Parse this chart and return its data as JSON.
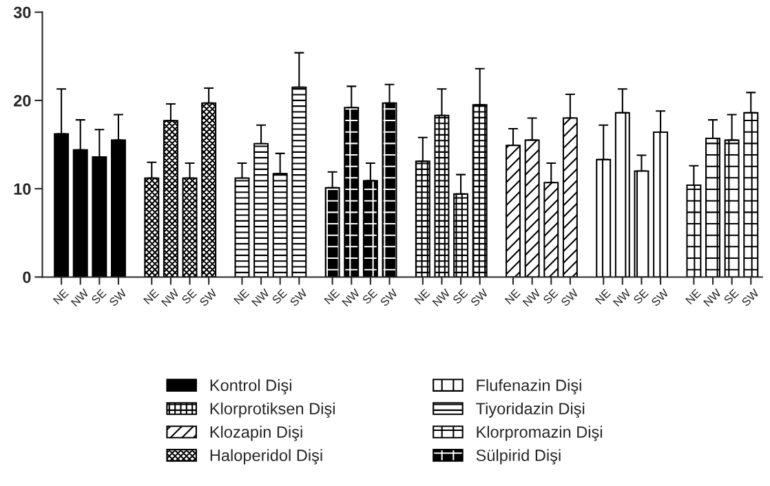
{
  "chart_data": {
    "type": "bar",
    "categories": [
      "NE",
      "NW",
      "SE",
      "SW",
      "NE",
      "NW",
      "SE",
      "SW",
      "NE",
      "NW",
      "SE",
      "SW",
      "NE",
      "NW",
      "SE",
      "SW",
      "NE",
      "NW",
      "SE",
      "SW",
      "NE",
      "NW",
      "SE",
      "SW",
      "NE",
      "NW",
      "SE",
      "SW",
      "NE",
      "NW",
      "SE",
      "SW"
    ],
    "series": [
      {
        "name": "Kontrol Dişi",
        "color": "#000000",
        "values": [
          16.2,
          14.4,
          13.6,
          15.5,
          null,
          null,
          null,
          null,
          null,
          null,
          null,
          null,
          null,
          null,
          null,
          null,
          null,
          null,
          null,
          null,
          null,
          null,
          null,
          null,
          null,
          null,
          null,
          null,
          null,
          null,
          null,
          null
        ],
        "errors": [
          [
            16.2,
            21.3
          ],
          [
            14.4,
            17.8
          ],
          [
            13.6,
            16.7
          ],
          [
            15.5,
            18.4
          ],
          null,
          null,
          null,
          null,
          null,
          null,
          null,
          null,
          null,
          null,
          null,
          null,
          null,
          null,
          null,
          null,
          null,
          null,
          null,
          null,
          null,
          null,
          null,
          null,
          null,
          null,
          null,
          null
        ]
      },
      {
        "name": "Klorprotiksen Dişi",
        "color": "#000000",
        "values": [
          null,
          null,
          null,
          null,
          null,
          null,
          null,
          null,
          null,
          null,
          null,
          null,
          null,
          null,
          null,
          null,
          13.1,
          18.3,
          9.4,
          19.5,
          null,
          null,
          null,
          null,
          null,
          null,
          null,
          null,
          null,
          null,
          null,
          null
        ],
        "errors": [
          null,
          null,
          null,
          null,
          null,
          null,
          null,
          null,
          null,
          null,
          null,
          null,
          null,
          null,
          null,
          null,
          [
            13.1,
            15.8
          ],
          [
            18.3,
            21.3
          ],
          [
            9.4,
            11.6
          ],
          [
            19.5,
            23.6
          ],
          null,
          null,
          null,
          null,
          null,
          null,
          null,
          null,
          null,
          null,
          null,
          null
        ]
      },
      {
        "name": "Klozapin Dişi",
        "color": "#000000",
        "values": [
          null,
          null,
          null,
          null,
          null,
          null,
          null,
          null,
          null,
          null,
          null,
          null,
          null,
          null,
          null,
          null,
          null,
          null,
          null,
          null,
          14.9,
          15.5,
          10.7,
          18.0,
          null,
          null,
          null,
          null,
          null,
          null,
          null,
          null
        ],
        "errors": [
          null,
          null,
          null,
          null,
          null,
          null,
          null,
          null,
          null,
          null,
          null,
          null,
          null,
          null,
          null,
          null,
          null,
          null,
          null,
          null,
          [
            14.9,
            16.8
          ],
          [
            15.5,
            18.0
          ],
          [
            10.7,
            12.9
          ],
          [
            18.0,
            20.7
          ],
          null,
          null,
          null,
          null,
          null,
          null,
          null,
          null
        ]
      },
      {
        "name": "Haloperidol Dişi",
        "color": "#000000",
        "values": [
          null,
          null,
          null,
          null,
          11.2,
          17.7,
          11.2,
          19.7,
          null,
          null,
          null,
          null,
          null,
          null,
          null,
          null,
          null,
          null,
          null,
          null,
          null,
          null,
          null,
          null,
          null,
          null,
          null,
          null,
          null,
          null,
          null,
          null
        ],
        "errors": [
          null,
          null,
          null,
          null,
          [
            11.2,
            13.0
          ],
          [
            17.7,
            19.6
          ],
          [
            11.2,
            12.9
          ],
          [
            19.7,
            21.4
          ],
          null,
          null,
          null,
          null,
          null,
          null,
          null,
          null,
          null,
          null,
          null,
          null,
          null,
          null,
          null,
          null,
          null,
          null,
          null,
          null,
          null,
          null,
          null,
          null
        ]
      },
      {
        "name": "Flufenazin Dişi",
        "color": "#000000",
        "values": [
          null,
          null,
          null,
          null,
          null,
          null,
          null,
          null,
          null,
          null,
          null,
          null,
          null,
          null,
          null,
          null,
          null,
          null,
          null,
          null,
          null,
          null,
          null,
          null,
          13.3,
          18.6,
          12.0,
          16.4,
          null,
          null,
          null,
          null
        ],
        "errors": [
          null,
          null,
          null,
          null,
          null,
          null,
          null,
          null,
          null,
          null,
          null,
          null,
          null,
          null,
          null,
          null,
          null,
          null,
          null,
          null,
          null,
          null,
          null,
          null,
          [
            13.3,
            17.2
          ],
          [
            18.6,
            21.3
          ],
          [
            12.0,
            13.8
          ],
          [
            16.4,
            18.8
          ],
          null,
          null,
          null,
          null
        ]
      },
      {
        "name": "Tiyoridazin Dişi",
        "color": "#000000",
        "values": [
          null,
          null,
          null,
          null,
          null,
          null,
          null,
          null,
          11.2,
          15.1,
          11.7,
          21.5,
          null,
          null,
          null,
          null,
          null,
          null,
          null,
          null,
          null,
          null,
          null,
          null,
          null,
          null,
          null,
          null,
          null,
          null,
          null,
          null
        ],
        "errors": [
          null,
          null,
          null,
          null,
          null,
          null,
          null,
          null,
          [
            11.2,
            12.9
          ],
          [
            15.1,
            17.2
          ],
          [
            11.7,
            14.0
          ],
          [
            21.5,
            25.4
          ],
          null,
          null,
          null,
          null,
          null,
          null,
          null,
          null,
          null,
          null,
          null,
          null,
          null,
          null,
          null,
          null,
          null,
          null,
          null,
          null
        ]
      },
      {
        "name": "Klorpromazin Dişi",
        "color": "#000000",
        "values": [
          null,
          null,
          null,
          null,
          null,
          null,
          null,
          null,
          null,
          null,
          null,
          null,
          null,
          null,
          null,
          null,
          null,
          null,
          null,
          null,
          null,
          null,
          null,
          null,
          null,
          null,
          null,
          null,
          10.4,
          15.7,
          15.5,
          18.6
        ],
        "errors": [
          null,
          null,
          null,
          null,
          null,
          null,
          null,
          null,
          null,
          null,
          null,
          null,
          null,
          null,
          null,
          null,
          null,
          null,
          null,
          null,
          null,
          null,
          null,
          null,
          null,
          null,
          null,
          null,
          [
            10.4,
            12.6
          ],
          [
            15.7,
            17.8
          ],
          [
            15.5,
            18.4
          ],
          [
            18.6,
            20.9
          ]
        ]
      },
      {
        "name": "Sülpirid Dişi",
        "color": "#000000",
        "values": [
          null,
          null,
          null,
          null,
          null,
          null,
          null,
          null,
          null,
          null,
          null,
          null,
          10.1,
          19.2,
          10.9,
          19.7,
          null,
          null,
          null,
          null,
          null,
          null,
          null,
          null,
          null,
          null,
          null,
          null,
          null,
          null,
          null,
          null
        ],
        "errors": [
          null,
          null,
          null,
          null,
          null,
          null,
          null,
          null,
          null,
          null,
          null,
          null,
          [
            10.1,
            11.9
          ],
          [
            19.2,
            21.6
          ],
          [
            10.9,
            12.9
          ],
          [
            19.7,
            21.8
          ],
          null,
          null,
          null,
          null,
          null,
          null,
          null,
          null,
          null,
          null,
          null,
          null,
          null,
          null,
          null,
          null
        ]
      }
    ],
    "ylim": [
      0,
      30
    ],
    "yticks": [
      0,
      10,
      20,
      30
    ],
    "grid": false,
    "legend": "bottom"
  }
}
